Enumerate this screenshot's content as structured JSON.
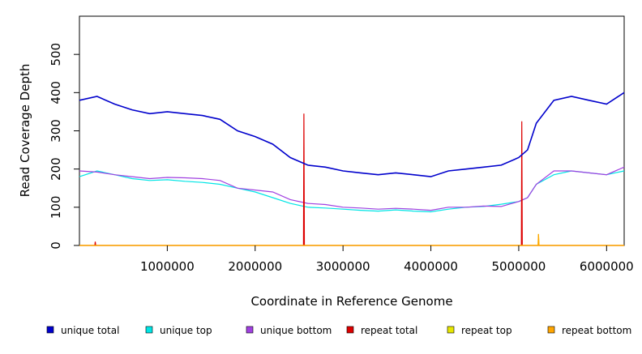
{
  "chart_data": {
    "type": "line",
    "title": "",
    "xlabel": "Coordinate in Reference Genome",
    "ylabel": "Read Coverage Depth",
    "xlim": [
      0,
      6200000
    ],
    "ylim": [
      0,
      600
    ],
    "x_ticks": [
      1000000,
      2000000,
      3000000,
      4000000,
      5000000,
      6000000
    ],
    "y_ticks": [
      0,
      100,
      200,
      300,
      400,
      500
    ],
    "grid": false,
    "legend_position": "bottom",
    "colors": {
      "unique total": "#0000cc",
      "unique top": "#00e5e5",
      "unique bottom": "#a040e0",
      "repeat total": "#dd0000",
      "repeat top": "#e6e600",
      "repeat bottom": "#ffa500"
    },
    "series": [
      {
        "name": "unique total",
        "x": [
          0,
          200000,
          400000,
          600000,
          800000,
          1000000,
          1200000,
          1400000,
          1600000,
          1800000,
          2000000,
          2200000,
          2400000,
          2600000,
          2800000,
          3000000,
          3200000,
          3400000,
          3600000,
          3800000,
          4000000,
          4200000,
          4400000,
          4600000,
          4800000,
          5000000,
          5100000,
          5200000,
          5400000,
          5600000,
          5800000,
          6000000,
          6200000
        ],
        "values": [
          380,
          390,
          370,
          355,
          345,
          350,
          345,
          340,
          330,
          300,
          285,
          265,
          230,
          210,
          205,
          195,
          190,
          185,
          190,
          185,
          180,
          195,
          200,
          205,
          210,
          230,
          250,
          320,
          380,
          390,
          380,
          370,
          400
        ]
      },
      {
        "name": "unique top",
        "x": [
          0,
          200000,
          400000,
          600000,
          800000,
          1000000,
          1200000,
          1400000,
          1600000,
          1800000,
          2000000,
          2200000,
          2400000,
          2600000,
          2800000,
          3000000,
          3200000,
          3400000,
          3600000,
          3800000,
          4000000,
          4200000,
          4400000,
          4600000,
          4800000,
          5000000,
          5100000,
          5200000,
          5400000,
          5600000,
          5800000,
          6000000,
          6200000
        ],
        "values": [
          180,
          195,
          185,
          175,
          170,
          172,
          168,
          165,
          160,
          150,
          140,
          125,
          110,
          100,
          98,
          95,
          92,
          90,
          93,
          90,
          88,
          95,
          100,
          102,
          108,
          115,
          125,
          160,
          185,
          195,
          190,
          185,
          195
        ]
      },
      {
        "name": "unique bottom",
        "x": [
          0,
          200000,
          400000,
          600000,
          800000,
          1000000,
          1200000,
          1400000,
          1600000,
          1800000,
          2000000,
          2200000,
          2400000,
          2600000,
          2800000,
          3000000,
          3200000,
          3400000,
          3600000,
          3800000,
          4000000,
          4200000,
          4400000,
          4600000,
          4800000,
          5000000,
          5100000,
          5200000,
          5400000,
          5600000,
          5800000,
          6000000,
          6200000
        ],
        "values": [
          195,
          192,
          185,
          180,
          175,
          178,
          177,
          175,
          170,
          150,
          145,
          140,
          120,
          110,
          107,
          100,
          98,
          95,
          97,
          95,
          92,
          100,
          100,
          103,
          102,
          115,
          125,
          160,
          195,
          195,
          190,
          185,
          205
        ]
      },
      {
        "name": "repeat total",
        "x": [
          0,
          175000,
          180000,
          185000,
          2550000,
          2555000,
          2560000,
          5030000,
          5035000,
          5040000,
          6200000
        ],
        "values": [
          0,
          0,
          10,
          0,
          0,
          345,
          0,
          0,
          325,
          0,
          0
        ]
      },
      {
        "name": "repeat top",
        "x": [
          0,
          5220000,
          5225000,
          5230000,
          6200000
        ],
        "values": [
          0,
          0,
          30,
          0,
          0
        ]
      },
      {
        "name": "repeat bottom",
        "x": [
          0,
          5220000,
          5225000,
          5230000,
          6200000
        ],
        "values": [
          0,
          0,
          30,
          0,
          0
        ]
      }
    ],
    "legend": [
      {
        "label": "unique total",
        "color": "#0000cc"
      },
      {
        "label": "unique top",
        "color": "#00e5e5"
      },
      {
        "label": "unique bottom",
        "color": "#a040e0"
      },
      {
        "label": "repeat total",
        "color": "#dd0000"
      },
      {
        "label": "repeat top",
        "color": "#e6e600"
      },
      {
        "label": "repeat bottom",
        "color": "#ffa500"
      }
    ]
  }
}
